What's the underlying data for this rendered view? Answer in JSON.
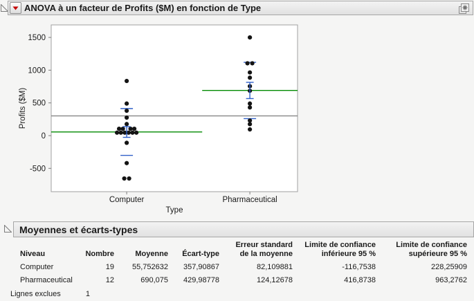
{
  "report": {
    "title": "ANOVA à un facteur de Profits ($M) en fonction de Type",
    "section2_title": "Moyennes et écarts-types"
  },
  "chart_data": {
    "type": "scatter",
    "title": "ANOVA à un facteur de Profits ($M) en fonction de Type",
    "xlabel": "Type",
    "ylabel": "Profits ($M)",
    "y_ticks": [
      1500,
      1000,
      500,
      0,
      -500
    ],
    "ylim": [
      -860,
      1690
    ],
    "grid": false,
    "legend": "none",
    "categories": [
      "Computer",
      "Pharmaceutical"
    ],
    "grand_mean": 301.3,
    "groups": [
      {
        "name": "Computer",
        "n": 19,
        "mean": 55.752632,
        "sd": 357.90867,
        "se": 82.109881,
        "points": [
          [
            835,
            0
          ],
          [
            490,
            0
          ],
          [
            380,
            0
          ],
          [
            275,
            0
          ],
          [
            177,
            0
          ],
          [
            105,
            -11
          ],
          [
            105,
            -5.5
          ],
          [
            105,
            5.5
          ],
          [
            105,
            11
          ],
          [
            45,
            -14
          ],
          [
            45,
            -8.4
          ],
          [
            45,
            -2.8
          ],
          [
            45,
            2.8
          ],
          [
            45,
            8.4
          ],
          [
            45,
            14
          ],
          [
            -110,
            0
          ],
          [
            -420,
            0
          ],
          [
            -655,
            -3.5
          ],
          [
            -655,
            3.5
          ]
        ]
      },
      {
        "name": "Pharmaceutical",
        "n": 12,
        "mean": 690.075,
        "sd": 429.98778,
        "se": 124.12678,
        "points": [
          [
            1500,
            0
          ],
          [
            1105,
            -3.5
          ],
          [
            1105,
            3.5
          ],
          [
            965,
            0
          ],
          [
            885,
            0
          ],
          [
            755,
            0
          ],
          [
            685,
            0
          ],
          [
            490,
            0
          ],
          [
            430,
            0
          ],
          [
            230,
            0
          ],
          [
            175,
            0
          ],
          [
            95,
            0
          ]
        ]
      }
    ],
    "colors": {
      "group_mean_line": "#018a01",
      "std_dev_blue": "#3060c8",
      "grand_mean_line": "#7d7d7d",
      "point": "#141414"
    }
  },
  "table": {
    "columns": [
      "Niveau",
      "Nombre",
      "Moyenne",
      "Écart-type",
      "Erreur standard\nde la moyenne",
      "Limite de confiance\ninférieure 95 %",
      "Limite de confiance\nsupérieure 95 %"
    ],
    "rows": [
      [
        "Computer",
        "19",
        "55,752632",
        "357,90867",
        "82,109881",
        "-116,7538",
        "228,25909"
      ],
      [
        "Pharmaceutical",
        "12",
        "690,075",
        "429,98778",
        "124,12678",
        "416,8738",
        "963,2762"
      ]
    ],
    "footer_label": "Lignes exclues",
    "footer_value": "1"
  },
  "icons": {
    "disclosure": "open-triangle",
    "red_triangle_menu": "red-down-triangle",
    "corner": "linked-data-table-star"
  }
}
